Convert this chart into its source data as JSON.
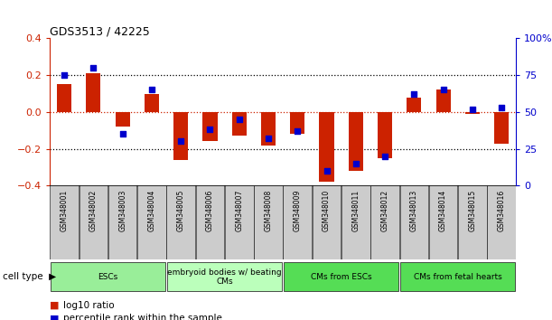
{
  "title": "GDS3513 / 42225",
  "samples": [
    "GSM348001",
    "GSM348002",
    "GSM348003",
    "GSM348004",
    "GSM348005",
    "GSM348006",
    "GSM348007",
    "GSM348008",
    "GSM348009",
    "GSM348010",
    "GSM348011",
    "GSM348012",
    "GSM348013",
    "GSM348014",
    "GSM348015",
    "GSM348016"
  ],
  "log10_ratio": [
    0.15,
    0.21,
    -0.08,
    0.1,
    -0.26,
    -0.16,
    -0.13,
    -0.18,
    -0.12,
    -0.38,
    -0.32,
    -0.25,
    0.08,
    0.12,
    -0.01,
    -0.17
  ],
  "percentile_rank": [
    75,
    80,
    35,
    65,
    30,
    38,
    45,
    32,
    37,
    10,
    15,
    20,
    62,
    65,
    52,
    53
  ],
  "bar_color": "#cc2200",
  "dot_color": "#0000cc",
  "cell_type_groups": [
    {
      "label": "ESCs",
      "start": 0,
      "end": 3,
      "color": "#99ee99"
    },
    {
      "label": "embryoid bodies w/ beating\nCMs",
      "start": 4,
      "end": 7,
      "color": "#bbffbb"
    },
    {
      "label": "CMs from ESCs",
      "start": 8,
      "end": 11,
      "color": "#55dd55"
    },
    {
      "label": "CMs from fetal hearts",
      "start": 12,
      "end": 15,
      "color": "#55dd55"
    }
  ],
  "xtick_bg": "#cccccc",
  "ylim_left": [
    -0.4,
    0.4
  ],
  "ylim_right": [
    0,
    100
  ],
  "yticks_left": [
    -0.4,
    -0.2,
    0.0,
    0.2,
    0.4
  ],
  "yticks_right": [
    0,
    25,
    50,
    75,
    100
  ],
  "hlines_black_dotted": [
    -0.2,
    0.2
  ],
  "hline_red_dotted": 0.0,
  "legend_items": [
    {
      "color": "#cc2200",
      "label": "log10 ratio"
    },
    {
      "color": "#0000cc",
      "label": "percentile rank within the sample"
    }
  ]
}
